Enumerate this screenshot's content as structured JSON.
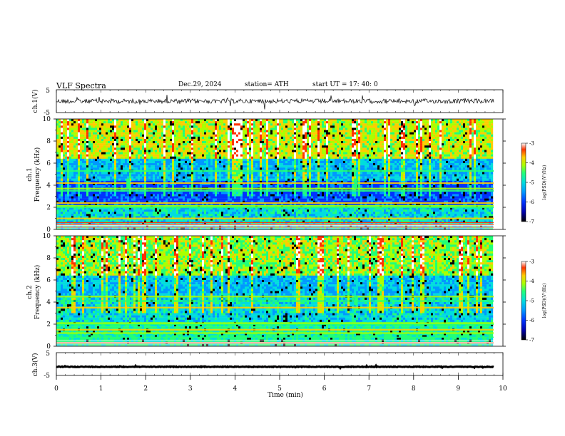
{
  "header": {
    "title": "VLF  Spectra",
    "date": "Dec.29, 2024",
    "station": "station= ATH",
    "start_ut": "start  UT  =    17: 40: 0"
  },
  "chart_data": [
    {
      "type": "line",
      "ylabel": "ch.1(V)",
      "yticks": [
        "5",
        "-5"
      ],
      "ylim": [
        -5,
        5
      ],
      "xlim": [
        0,
        10
      ],
      "series": [
        {
          "mean": 0,
          "spread": 1.2
        }
      ]
    },
    {
      "type": "heatmap",
      "ylabel": "ch.1\nFrequency  (kHz)",
      "yticks": [
        "0",
        "2",
        "4",
        "6",
        "8",
        "10"
      ],
      "ylim": [
        0,
        10
      ],
      "xlim": [
        0,
        9.8
      ],
      "colorbar": {
        "label": "log(PSD)(V²/Hz)",
        "ticks": [
          "-3",
          "-4",
          "-5",
          "-6",
          "-7"
        ],
        "range": [
          -7,
          -3
        ]
      },
      "features": {
        "bands_khz": [
          0.2,
          0.4,
          0.6,
          1.0,
          2.0,
          2.15,
          2.4,
          3.5,
          3.7,
          4.2,
          5.3
        ],
        "event_times_min": [
          1.6,
          6.7
        ]
      }
    },
    {
      "type": "heatmap",
      "ylabel": "ch.2\nFrequency  (kHz)",
      "yticks": [
        "0",
        "2",
        "4",
        "6",
        "8",
        "10"
      ],
      "ylim": [
        0,
        10
      ],
      "xlim": [
        0,
        9.8
      ],
      "colorbar": {
        "label": "log(PSD)(V²/Hz)",
        "ticks": [
          "-3",
          "-4",
          "-5",
          "-6",
          "-7"
        ],
        "range": [
          -7,
          -3
        ]
      },
      "features": {
        "bands_khz": [
          0.3,
          0.8,
          1.2,
          1.5,
          2.0,
          2.1,
          3.5,
          4.1,
          4.5
        ],
        "event_times_min": [
          1.6,
          6.7
        ]
      }
    },
    {
      "type": "line",
      "ylabel": "ch.3(V)",
      "yticks": [
        "5",
        "-5"
      ],
      "ylim": [
        -5,
        5
      ],
      "xlim": [
        0,
        10
      ],
      "xlabel": "Time  (min)",
      "xticks": [
        "0",
        "1",
        "2",
        "3",
        "4",
        "5",
        "6",
        "7",
        "8",
        "9",
        "10"
      ],
      "series": [
        {
          "mean": -1.2,
          "spread": 0.35
        }
      ]
    }
  ],
  "colors": {
    "trace": "#000000",
    "axes": "#000000",
    "colormap": [
      "#000000",
      "#0000aa",
      "#0033ff",
      "#0099ff",
      "#00dddd",
      "#22ff77",
      "#aaff00",
      "#ffcc00",
      "#ff3300",
      "#ffffff"
    ]
  }
}
